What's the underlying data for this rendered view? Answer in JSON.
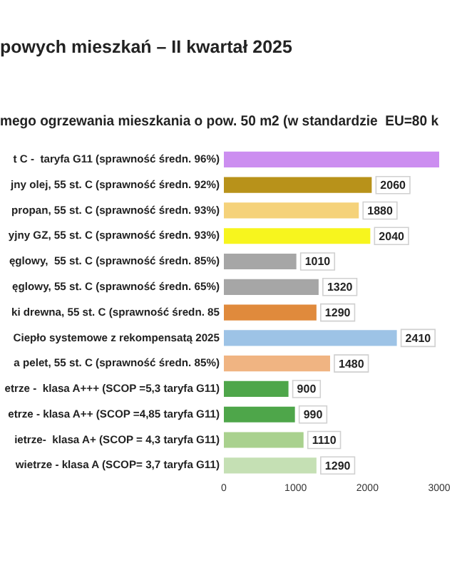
{
  "chart_data": {
    "type": "bar",
    "orientation": "horizontal",
    "title": "powych mieszkań – II kwartał 2025",
    "subtitle": "mego ogrzewania mieszkania o pow. 50 m2 (w standardzie  EU=80 k",
    "categories": [
      "t C -  taryfa G11 (sprawność średn. 96%)",
      "jny olej, 55 st. C (sprawność średn. 92%)",
      "propan, 55 st. C (sprawność średn. 93%)",
      "yjny GZ, 55 st. C (sprawność średn. 93%)",
      "ęglowy,  55 st. C (sprawność średn. 85%)",
      "ęglowy, 55 st. C (sprawność średn. 65%)",
      "ki drewna, 55 st. C (sprawność średn. 85",
      "Ciepło systemowe z rekompensatą 2025",
      "a pelet, 55 st. C (sprawność średn. 85%)",
      "etrze -  klasa A+++ (SCOP =5,3 taryfa G11)",
      "etrze - klasa A++ (SCOP =4,85 taryfa G11)",
      "ietrze-  klasa A+ (SCOP = 4,3 taryfa G11)",
      "wietrze - klasa A (SCOP= 3,7 taryfa G11)"
    ],
    "values": [
      3000,
      2060,
      1880,
      2040,
      1010,
      1320,
      1290,
      2410,
      1480,
      900,
      990,
      1110,
      1290
    ],
    "value_labels": [
      null,
      "2060",
      "1880",
      "2040",
      "1010",
      "1320",
      "1290",
      "2410",
      "1480",
      "900",
      "990",
      "1110",
      "1290"
    ],
    "colors": [
      "#cc8ef0",
      "#b8921a",
      "#f5d27a",
      "#f7f51e",
      "#a6a6a6",
      "#a6a6a6",
      "#e08a3c",
      "#9dc3e6",
      "#f0b482",
      "#4ea64a",
      "#4ea64a",
      "#a9d18e",
      "#c5e0b4"
    ],
    "xlim": [
      0,
      3000
    ],
    "xticks": [
      0,
      1000,
      2000,
      3000
    ],
    "grid": false,
    "legend": false
  }
}
